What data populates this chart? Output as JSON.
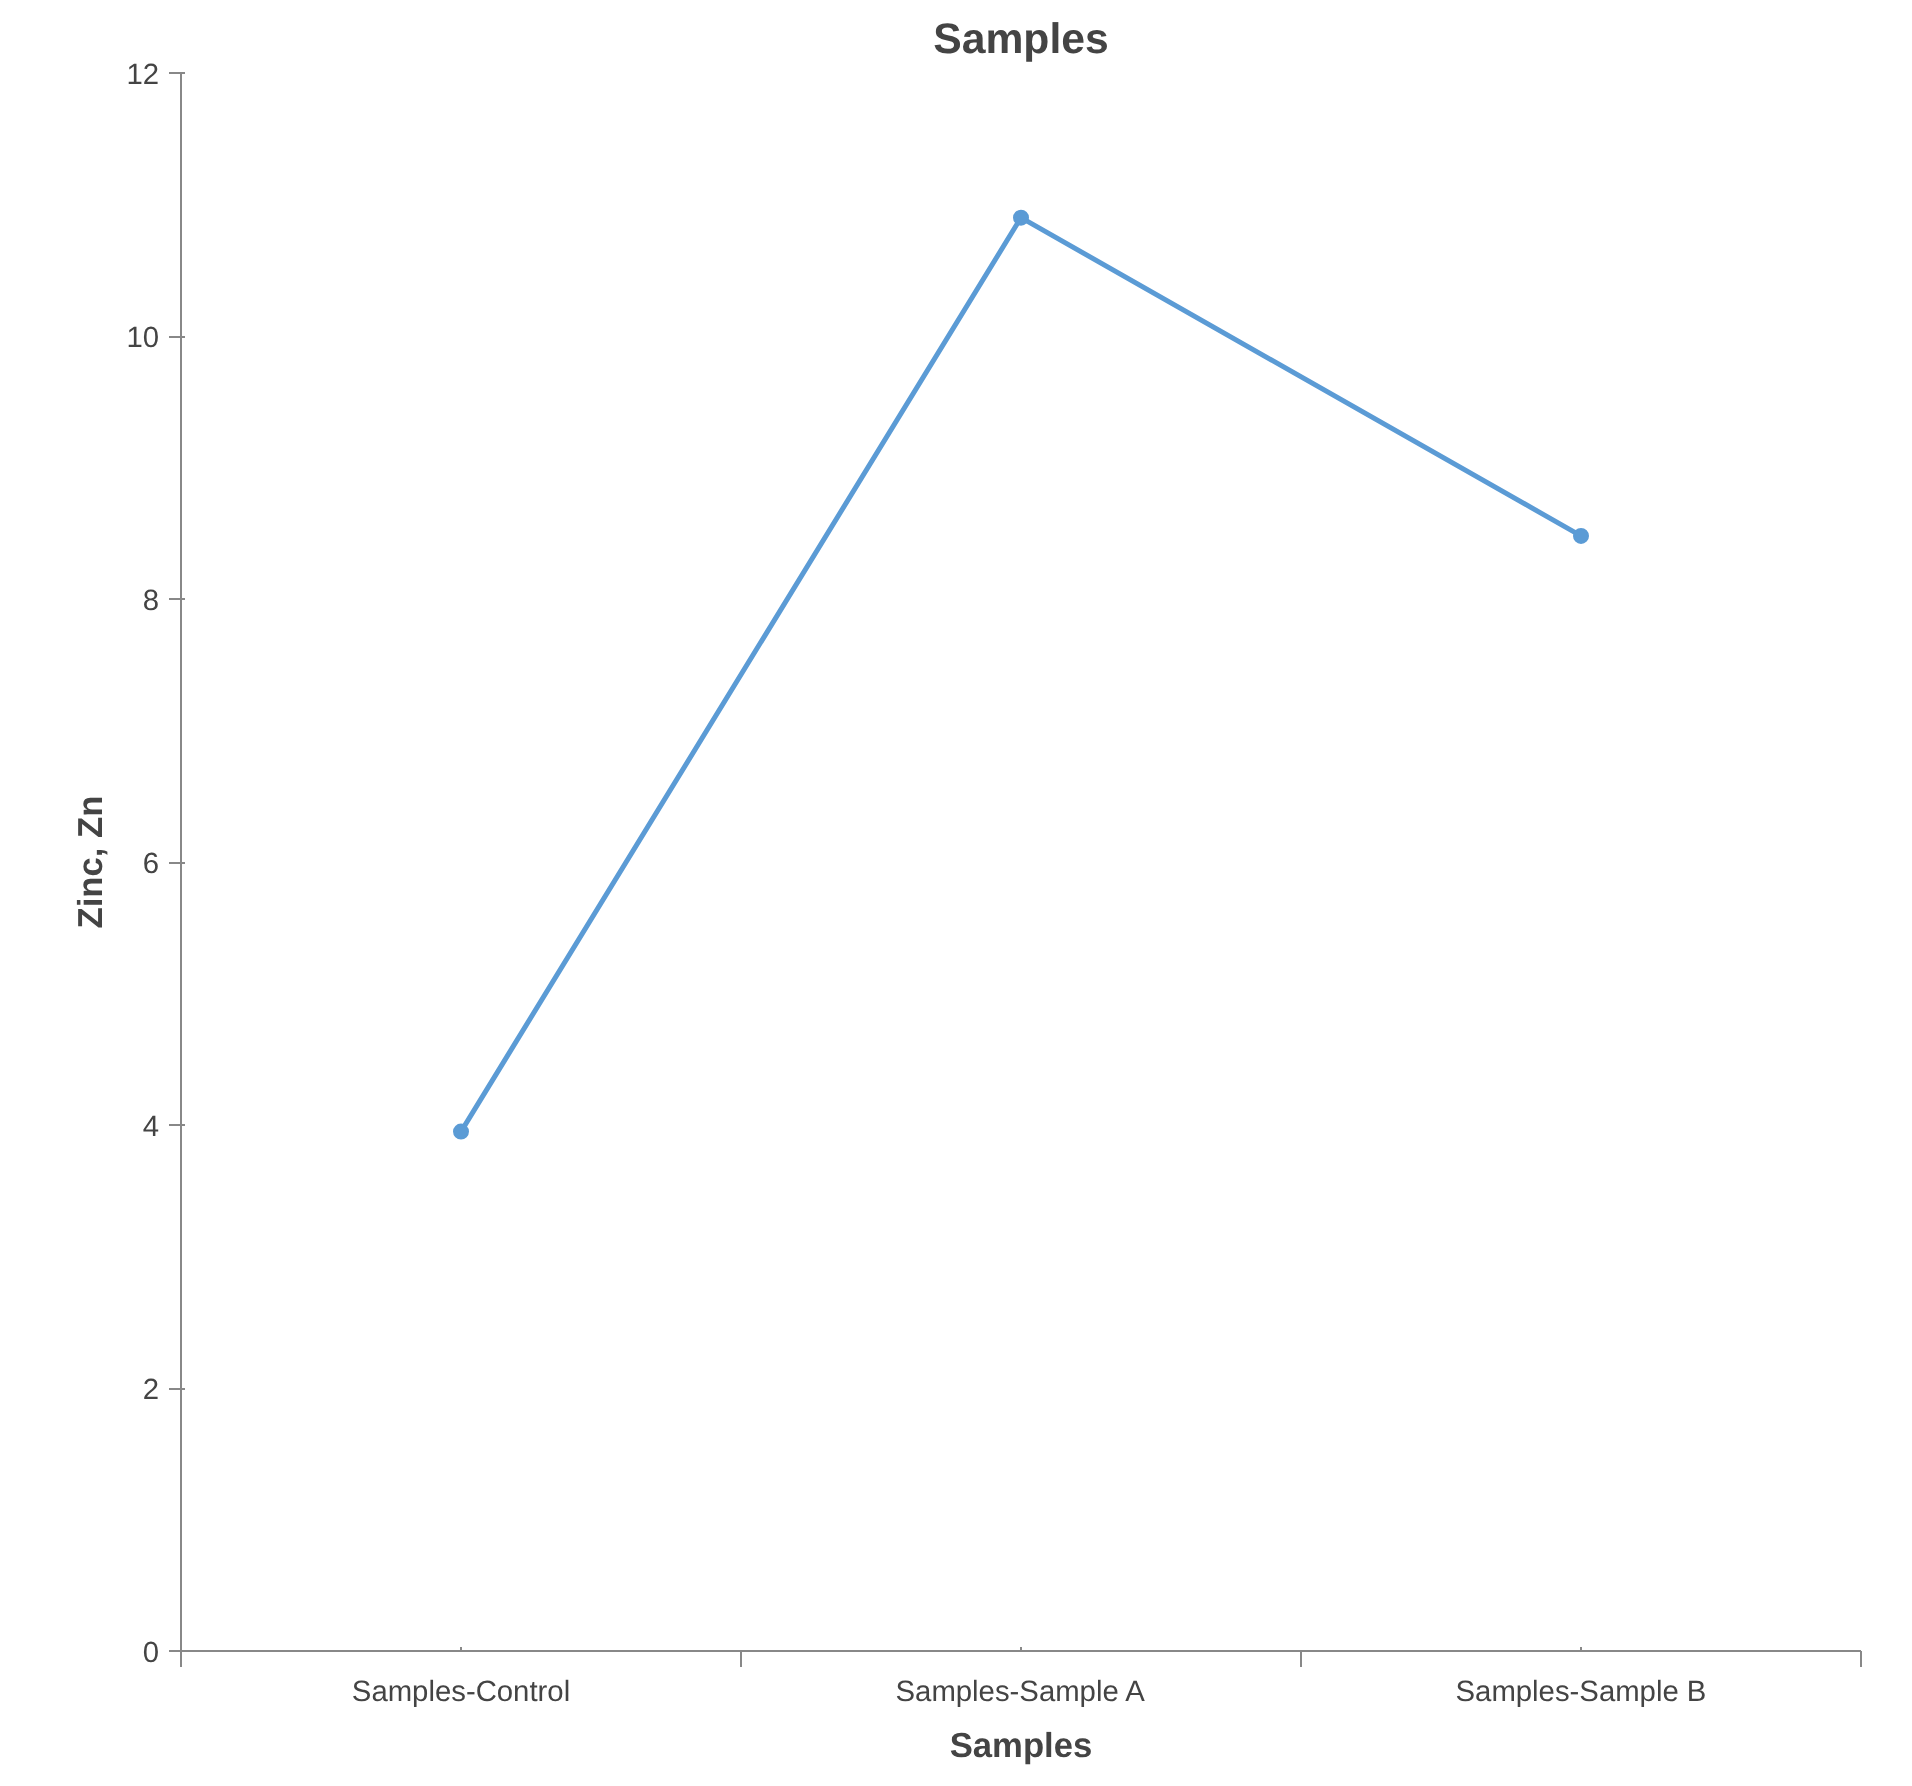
{
  "chart_data": {
    "type": "line",
    "title": "Samples",
    "xlabel": "Samples",
    "ylabel": "Zinc, Zn",
    "categories": [
      "Samples-Control",
      "Samples-Sample A",
      "Samples-Sample B"
    ],
    "series": [
      {
        "color": "#5b9bd5",
        "values": [
          3.95,
          10.9,
          8.48
        ]
      }
    ],
    "ylim": [
      0,
      12
    ],
    "yticks": [
      0,
      2,
      4,
      6,
      8,
      10,
      12
    ],
    "marker": "circle",
    "line_style": "solid"
  }
}
